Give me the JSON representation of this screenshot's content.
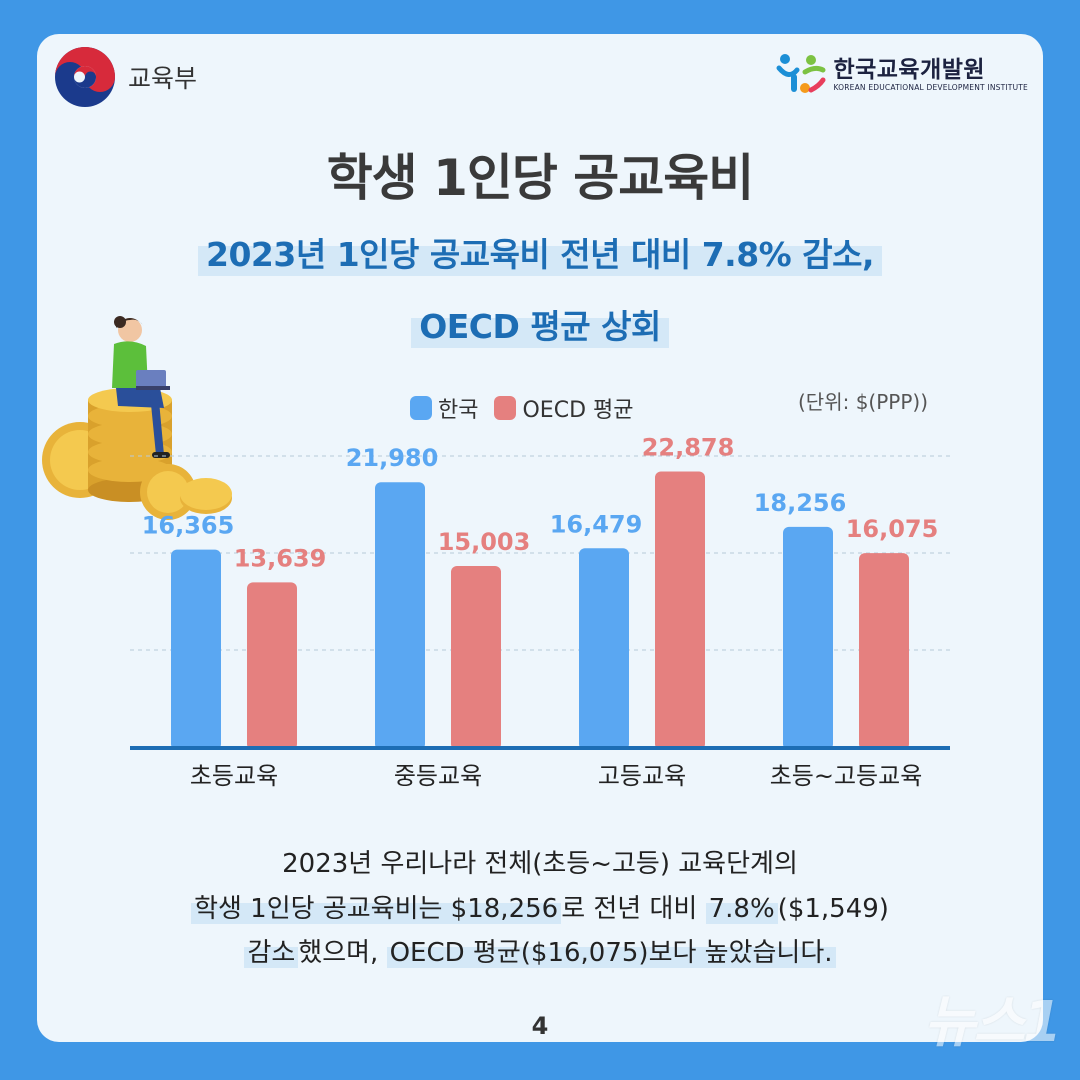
{
  "header": {
    "ministry": "교육부",
    "institute_name": "한국교육개발원",
    "institute_eng": "KOREAN EDUCATIONAL DEVELOPMENT INSTITUTE"
  },
  "title": "학생 1인당 공교육비",
  "subtitle": {
    "line1": "2023년 1인당 공교육비 전년 대비 7.8% 감소,",
    "line2": "OECD 평균 상회"
  },
  "unit_label": "(단위: $(PPP))",
  "colors": {
    "korea": "#5aa7f2",
    "oecd": "#e5807f",
    "accent": "#1d6db4"
  },
  "chart_data": {
    "type": "bar",
    "categories": [
      "초등교육",
      "중등교육",
      "고등교육",
      "초등~고등교육"
    ],
    "series": [
      {
        "name": "한국",
        "values": [
          16365,
          21980,
          16479,
          18256
        ],
        "labels": [
          "16,365",
          "21,980",
          "16,479",
          "18,256"
        ]
      },
      {
        "name": "OECD 평균",
        "values": [
          13639,
          15003,
          22878,
          16075
        ],
        "labels": [
          "13,639",
          "15,003",
          "22,878",
          "16,075"
        ]
      }
    ],
    "ylim": [
      0,
      25000
    ],
    "grid": true,
    "legend": "top"
  },
  "body": {
    "l1": "2023년 우리나라 전체(초등~고등) 교육단계의",
    "l2a": "학생 1인당 공교육비는 $18,256",
    "l2b": "로 전년 대비 ",
    "l2c": "7.8%",
    "l2d": "($1,549)",
    "l3a": "감소",
    "l3b": "했으며, ",
    "l3c": "OECD 평균($16,075)보다 높았습니다."
  },
  "page_number": "4",
  "watermark": "뉴스1"
}
